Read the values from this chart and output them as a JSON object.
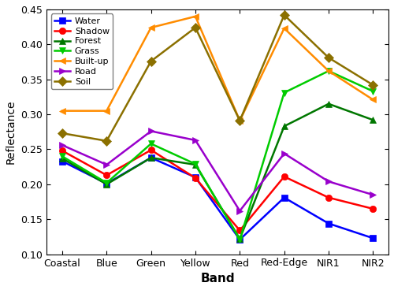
{
  "bands": [
    "Coastal",
    "Blue",
    "Green",
    "Yellow",
    "Red",
    "Red-Edge",
    "NIR1",
    "NIR2"
  ],
  "series": {
    "Water": [
      0.233,
      0.201,
      0.238,
      0.21,
      0.121,
      0.181,
      0.144,
      0.123
    ],
    "Shadow": [
      0.248,
      0.213,
      0.249,
      0.209,
      0.134,
      0.211,
      0.181,
      0.165
    ],
    "Forest": [
      0.237,
      0.2,
      0.238,
      0.228,
      0.122,
      0.283,
      0.315,
      0.292
    ],
    "Grass": [
      0.24,
      0.202,
      0.258,
      0.229,
      0.121,
      0.331,
      0.362,
      0.333
    ],
    "Built-up": [
      0.305,
      0.305,
      0.424,
      0.44,
      0.291,
      0.423,
      0.362,
      0.321
    ],
    "Road": [
      0.256,
      0.228,
      0.276,
      0.263,
      0.162,
      0.244,
      0.204,
      0.185
    ],
    "Soil": [
      0.273,
      0.262,
      0.376,
      0.424,
      0.291,
      0.442,
      0.381,
      0.342
    ]
  },
  "colors": {
    "Water": "#0000FF",
    "Shadow": "#FF0000",
    "Forest": "#007700",
    "Grass": "#00CC00",
    "Built-up": "#FF8C00",
    "Road": "#9900CC",
    "Soil": "#8B7000"
  },
  "markers": {
    "Water": "s",
    "Shadow": "o",
    "Forest": "^",
    "Grass": "v",
    "Built-up": "<",
    "Road": ">",
    "Soil": "D"
  },
  "xlabel": "Band",
  "ylabel": "Reflectance",
  "ylim": [
    0.1,
    0.45
  ],
  "yticks": [
    0.1,
    0.15,
    0.2,
    0.25,
    0.3,
    0.35,
    0.4,
    0.45
  ]
}
